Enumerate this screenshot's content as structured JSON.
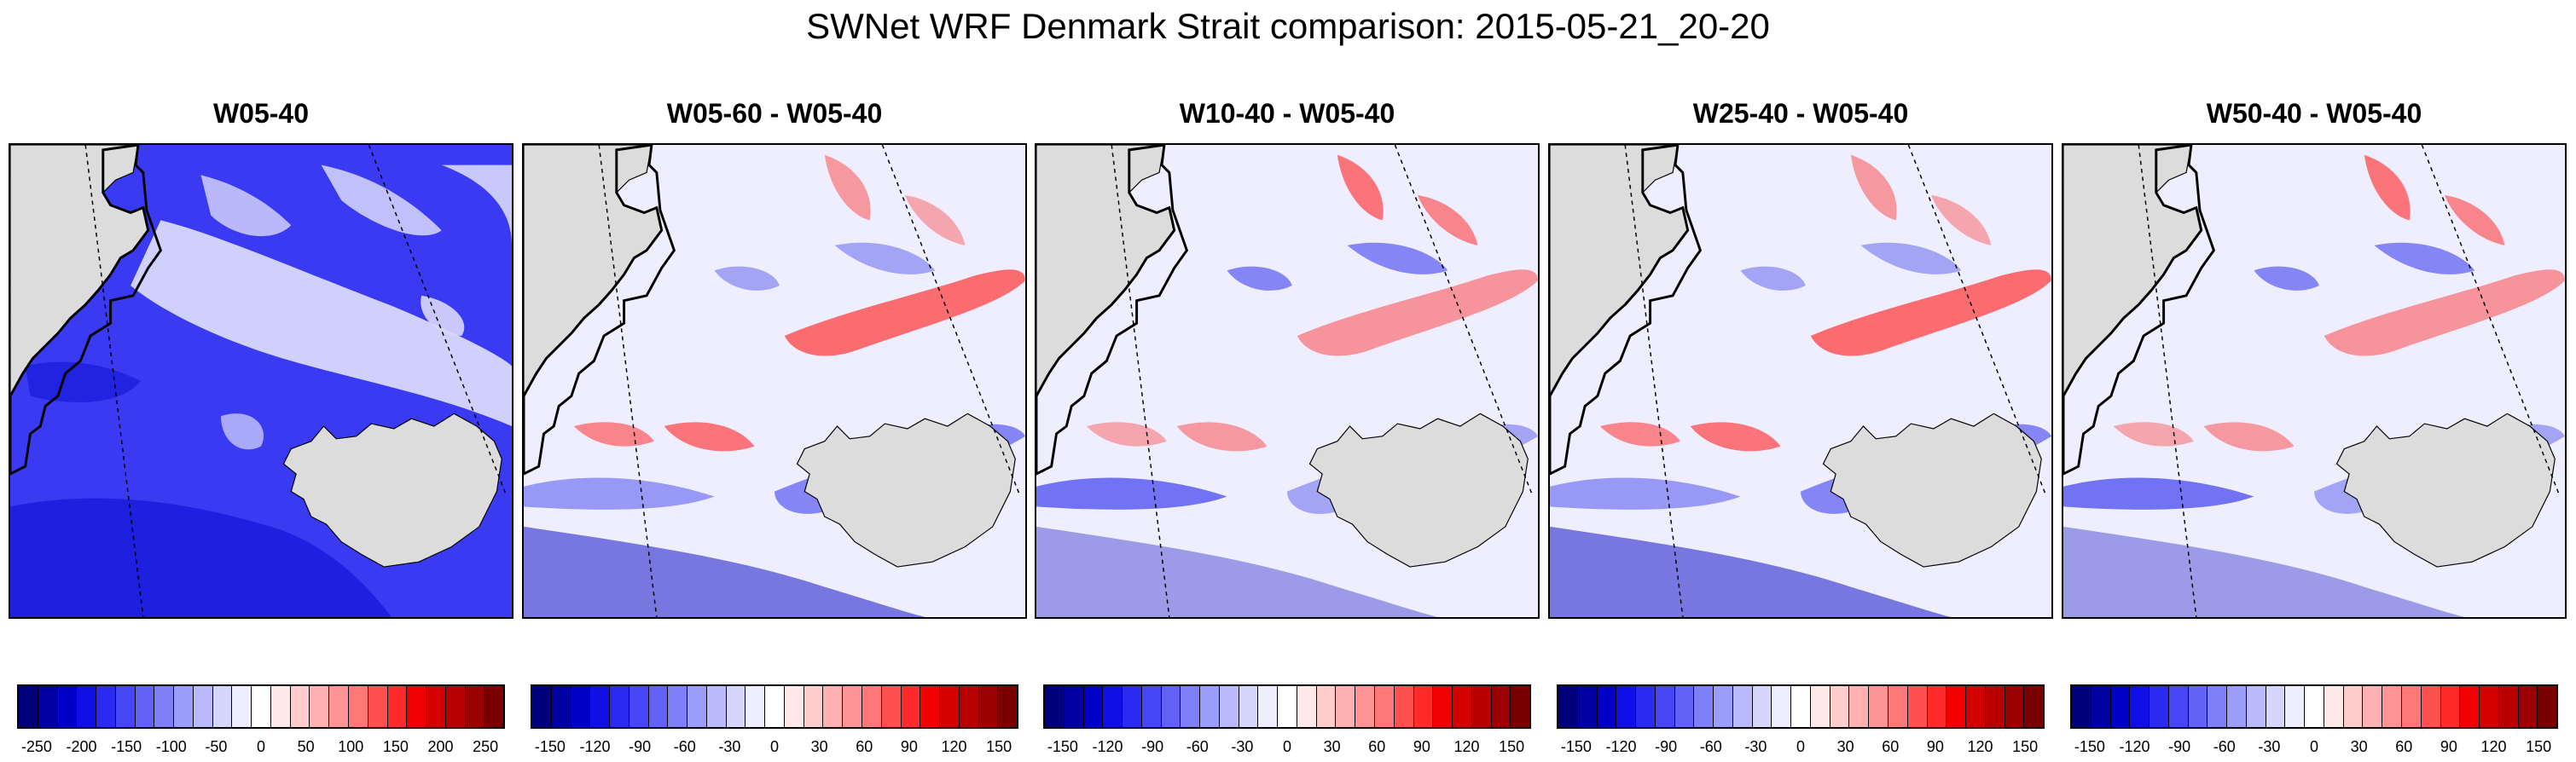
{
  "figure": {
    "title": "SWNet WRF Denmark Strait comparison: 2015-05-21_20-20"
  },
  "panels": [
    {
      "title": "W05-40",
      "mode": "absolute",
      "colorbar": {
        "ticks": [
          "-250",
          "-200",
          "-150",
          "-100",
          "-50",
          "0",
          "50",
          "100",
          "150",
          "200",
          "250"
        ],
        "colors": [
          "#00007a",
          "#0000a3",
          "#0000c8",
          "#1010e6",
          "#2a2af0",
          "#4646f4",
          "#6262f6",
          "#7f7ff8",
          "#9c9cfa",
          "#b9b9fb",
          "#d6d6fd",
          "#eeeefe",
          "#ffffff",
          "#ffe8e8",
          "#ffcccc",
          "#ffb0b0",
          "#ff9494",
          "#ff7878",
          "#ff5050",
          "#ff2a2a",
          "#f00000",
          "#d40000",
          "#b80000",
          "#9a0000",
          "#7a0000"
        ]
      }
    },
    {
      "title": "W05-60 - W05-40",
      "mode": "difference",
      "colorbar": {
        "ticks": [
          "-150",
          "-120",
          "-90",
          "-60",
          "-30",
          "0",
          "30",
          "60",
          "90",
          "120",
          "150"
        ],
        "colors": [
          "#00007a",
          "#0000a3",
          "#0000c8",
          "#1010e6",
          "#2a2af0",
          "#4646f4",
          "#6262f6",
          "#7f7ff8",
          "#9c9cfa",
          "#b9b9fb",
          "#d6d6fd",
          "#eeeefe",
          "#ffffff",
          "#ffe8e8",
          "#ffcccc",
          "#ffb0b0",
          "#ff9494",
          "#ff7878",
          "#ff5050",
          "#ff2a2a",
          "#f00000",
          "#d40000",
          "#b80000",
          "#9a0000",
          "#7a0000"
        ]
      }
    },
    {
      "title": "W10-40 - W05-40",
      "mode": "difference",
      "colorbar": {
        "ticks": [
          "-150",
          "-120",
          "-90",
          "-60",
          "-30",
          "0",
          "30",
          "60",
          "90",
          "120",
          "150"
        ],
        "colors": [
          "#00007a",
          "#0000a3",
          "#0000c8",
          "#1010e6",
          "#2a2af0",
          "#4646f4",
          "#6262f6",
          "#7f7ff8",
          "#9c9cfa",
          "#b9b9fb",
          "#d6d6fd",
          "#eeeefe",
          "#ffffff",
          "#ffe8e8",
          "#ffcccc",
          "#ffb0b0",
          "#ff9494",
          "#ff7878",
          "#ff5050",
          "#ff2a2a",
          "#f00000",
          "#d40000",
          "#b80000",
          "#9a0000",
          "#7a0000"
        ]
      }
    },
    {
      "title": "W25-40 - W05-40",
      "mode": "difference",
      "colorbar": {
        "ticks": [
          "-150",
          "-120",
          "-90",
          "-60",
          "-30",
          "0",
          "30",
          "60",
          "90",
          "120",
          "150"
        ],
        "colors": [
          "#00007a",
          "#0000a3",
          "#0000c8",
          "#1010e6",
          "#2a2af0",
          "#4646f4",
          "#6262f6",
          "#7f7ff8",
          "#9c9cfa",
          "#b9b9fb",
          "#d6d6fd",
          "#eeeefe",
          "#ffffff",
          "#ffe8e8",
          "#ffcccc",
          "#ffb0b0",
          "#ff9494",
          "#ff7878",
          "#ff5050",
          "#ff2a2a",
          "#f00000",
          "#d40000",
          "#b80000",
          "#9a0000",
          "#7a0000"
        ]
      }
    },
    {
      "title": "W50-40 - W05-40",
      "mode": "difference",
      "colorbar": {
        "ticks": [
          "-150",
          "-120",
          "-90",
          "-60",
          "-30",
          "0",
          "30",
          "60",
          "90",
          "120",
          "150"
        ],
        "colors": [
          "#00007a",
          "#0000a3",
          "#0000c8",
          "#1010e6",
          "#2a2af0",
          "#4646f4",
          "#6262f6",
          "#7f7ff8",
          "#9c9cfa",
          "#b9b9fb",
          "#d6d6fd",
          "#eeeefe",
          "#ffffff",
          "#ffe8e8",
          "#ffcccc",
          "#ffb0b0",
          "#ff9494",
          "#ff7878",
          "#ff5050",
          "#ff2a2a",
          "#f00000",
          "#d40000",
          "#b80000",
          "#9a0000",
          "#7a0000"
        ]
      }
    }
  ],
  "colors": {
    "land": "#dcdcdc",
    "coast": "#000000",
    "abs_base": "#3a3af2",
    "abs_light": "#d8d8fd",
    "abs_dark": "#0a0ad0",
    "diff_base": "#eeeefe",
    "diff_red": "#ff4040",
    "diff_blue": "#3030ee",
    "diff_darkblue": "#0000c0"
  }
}
